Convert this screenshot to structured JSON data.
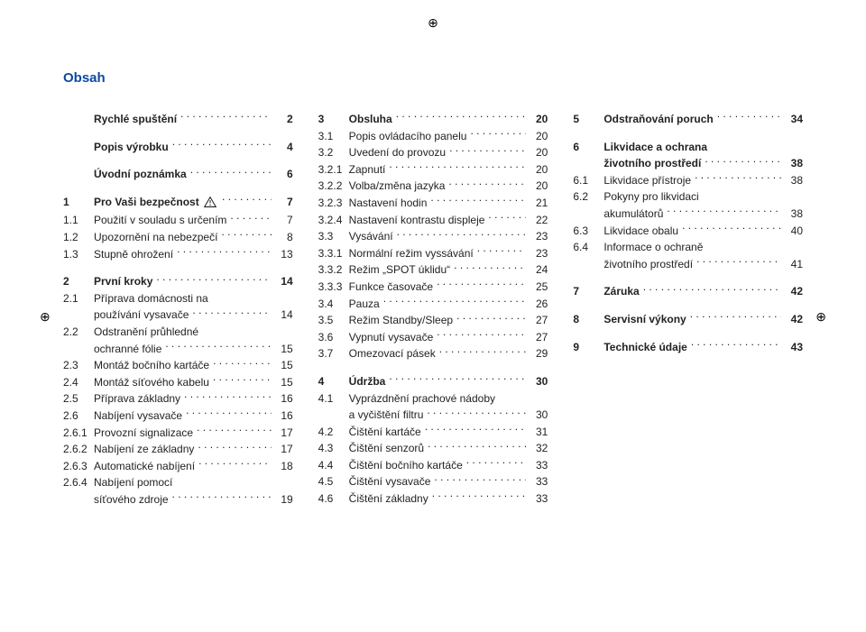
{
  "title": "Obsah",
  "reg_mark": "⊕",
  "columns": [
    [
      {
        "type": "entry",
        "bold": true,
        "num": "",
        "text": "Rychlé spuštění",
        "page": "2"
      },
      {
        "type": "spacer"
      },
      {
        "type": "entry",
        "bold": true,
        "num": "",
        "text": "Popis výrobku",
        "page": "4"
      },
      {
        "type": "spacer"
      },
      {
        "type": "entry",
        "bold": true,
        "num": "",
        "text": "Úvodní poznámka",
        "page": "6"
      },
      {
        "type": "spacer"
      },
      {
        "type": "entry",
        "bold": true,
        "num": "1",
        "text": "Pro Vaši bezpečnost",
        "icon": "warn",
        "page": "7"
      },
      {
        "type": "entry",
        "num": "1.1",
        "text": "Použití v souladu s určením",
        "page": "7"
      },
      {
        "type": "entry",
        "num": "1.2",
        "text": "Upozornění na nebezpečí",
        "page": "8"
      },
      {
        "type": "entry",
        "num": "1.3",
        "text": "Stupně ohrožení",
        "page": "13"
      },
      {
        "type": "spacer"
      },
      {
        "type": "entry",
        "bold": true,
        "num": "2",
        "text": "První kroky",
        "page": "14"
      },
      {
        "type": "wrapentry",
        "num": "2.1",
        "text1": "Příprava domácnosti na",
        "text2": "používání vysavače",
        "page": "14"
      },
      {
        "type": "wrapentry",
        "num": "2.2",
        "text1": "Odstranění průhledné",
        "text2": "ochranné fólie",
        "page": "15"
      },
      {
        "type": "entry",
        "num": "2.3",
        "text": "Montáž bočního kartáče",
        "page": "15"
      },
      {
        "type": "entry",
        "num": "2.4",
        "text": "Montáž síťového kabelu",
        "page": "15"
      },
      {
        "type": "entry",
        "num": "2.5",
        "text": "Příprava základny",
        "page": "16"
      },
      {
        "type": "entry",
        "num": "2.6",
        "text": "Nabíjení vysavače",
        "page": "16"
      },
      {
        "type": "entry",
        "num": "2.6.1",
        "text": "Provozní signalizace",
        "page": "17"
      },
      {
        "type": "entry",
        "num": "2.6.2",
        "text": "Nabíjení ze základny",
        "page": "17"
      },
      {
        "type": "entry",
        "num": "2.6.3",
        "text": "Automatické nabíjení",
        "page": "18"
      },
      {
        "type": "wrapentry",
        "num": "2.6.4",
        "text1": "Nabíjení pomocí",
        "text2": "síťového zdroje",
        "page": "19"
      }
    ],
    [
      {
        "type": "entry",
        "bold": true,
        "num": "3",
        "text": "Obsluha",
        "page": "20"
      },
      {
        "type": "entry",
        "num": "3.1",
        "text": "Popis ovládacího panelu",
        "page": "20"
      },
      {
        "type": "entry",
        "num": "3.2",
        "text": "Uvedení do provozu",
        "page": "20"
      },
      {
        "type": "entry",
        "num": "3.2.1",
        "text": "Zapnutí",
        "page": "20"
      },
      {
        "type": "entry",
        "num": "3.2.2",
        "text": "Volba/změna jazyka",
        "page": "20"
      },
      {
        "type": "entry",
        "num": "3.2.3",
        "text": "Nastavení hodin",
        "page": "21"
      },
      {
        "type": "entry",
        "num": "3.2.4",
        "text": "Nastavení kontrastu displeje",
        "page": "22"
      },
      {
        "type": "entry",
        "num": "3.3",
        "text": "Vysávání",
        "page": "23"
      },
      {
        "type": "entry",
        "num": "3.3.1",
        "text": "Normální režim vyssávání",
        "page": "23"
      },
      {
        "type": "entry",
        "num": "3.3.2",
        "text": "Režim „SPOT úklidu“",
        "page": "24"
      },
      {
        "type": "entry",
        "num": "3.3.3",
        "text": "Funkce časovače",
        "page": "25"
      },
      {
        "type": "entry",
        "num": "3.4",
        "text": "Pauza",
        "page": "26"
      },
      {
        "type": "entry",
        "num": "3.5",
        "text": "Režim Standby/Sleep",
        "page": "27"
      },
      {
        "type": "entry",
        "num": "3.6",
        "text": "Vypnutí vysavače",
        "page": "27"
      },
      {
        "type": "entry",
        "num": "3.7",
        "text": "Omezovací pásek",
        "page": "29"
      },
      {
        "type": "spacer"
      },
      {
        "type": "entry",
        "bold": true,
        "num": "4",
        "text": "Údržba",
        "page": "30"
      },
      {
        "type": "wrapentry",
        "num": "4.1",
        "text1": "Vyprázdnění prachové nádoby",
        "text2": "a vyčištění filtru",
        "page": "30"
      },
      {
        "type": "entry",
        "num": "4.2",
        "text": "Čištění kartáče",
        "page": "31"
      },
      {
        "type": "entry",
        "num": "4.3",
        "text": "Čištění senzorů",
        "page": "32"
      },
      {
        "type": "entry",
        "num": "4.4",
        "text": "Čištění bočního kartáče",
        "page": "33"
      },
      {
        "type": "entry",
        "num": "4.5",
        "text": "Čištění vysavače",
        "page": "33"
      },
      {
        "type": "entry",
        "num": "4.6",
        "text": "Čištění základny",
        "page": "33"
      }
    ],
    [
      {
        "type": "entry",
        "bold": true,
        "num": "5",
        "text": "Odstraňování poruch",
        "page": "34"
      },
      {
        "type": "spacer"
      },
      {
        "type": "wrapbold",
        "num": "6",
        "text1": "Likvidace a ochrana",
        "text2": "životního prostředí",
        "page": "38"
      },
      {
        "type": "entry",
        "num": "6.1",
        "text": "Likvidace přístroje",
        "page": "38"
      },
      {
        "type": "wrapentry",
        "num": "6.2",
        "text1": "Pokyny pro likvidaci",
        "text2": "akumulátorů",
        "page": "38"
      },
      {
        "type": "entry",
        "num": "6.3",
        "text": "Likvidace obalu",
        "page": "40"
      },
      {
        "type": "wrapentry",
        "num": "6.4",
        "text1": "Informace o ochraně",
        "text2": "životního prostředí",
        "page": "41"
      },
      {
        "type": "spacer"
      },
      {
        "type": "entry",
        "bold": true,
        "num": "7",
        "text": "Záruka",
        "page": "42"
      },
      {
        "type": "spacer"
      },
      {
        "type": "entry",
        "bold": true,
        "num": "8",
        "text": "Servisní výkony",
        "page": "42"
      },
      {
        "type": "spacer"
      },
      {
        "type": "entry",
        "bold": true,
        "num": "9",
        "text": "Technické údaje",
        "page": "43"
      }
    ]
  ]
}
